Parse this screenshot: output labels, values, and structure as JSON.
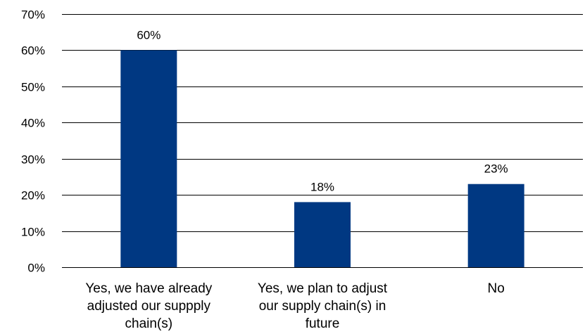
{
  "chart_data": {
    "type": "bar",
    "title": "",
    "xlabel": "",
    "ylabel": "",
    "categories": [
      [
        "Yes, we have already",
        "adjusted our suppply",
        "chain(s)"
      ],
      [
        "Yes, we plan to adjust",
        "our supply chain(s) in",
        "future"
      ],
      [
        "No"
      ]
    ],
    "values": [
      60,
      18,
      23
    ],
    "data_labels": [
      "60%",
      "18%",
      "23%"
    ],
    "ylim": [
      0,
      70
    ],
    "yticks": [
      0,
      10,
      20,
      30,
      40,
      50,
      60,
      70
    ],
    "ytick_labels": [
      "0%",
      "10%",
      "20%",
      "30%",
      "40%",
      "50%",
      "60%",
      "70%"
    ],
    "grid": true,
    "bar_color": "#003882"
  }
}
